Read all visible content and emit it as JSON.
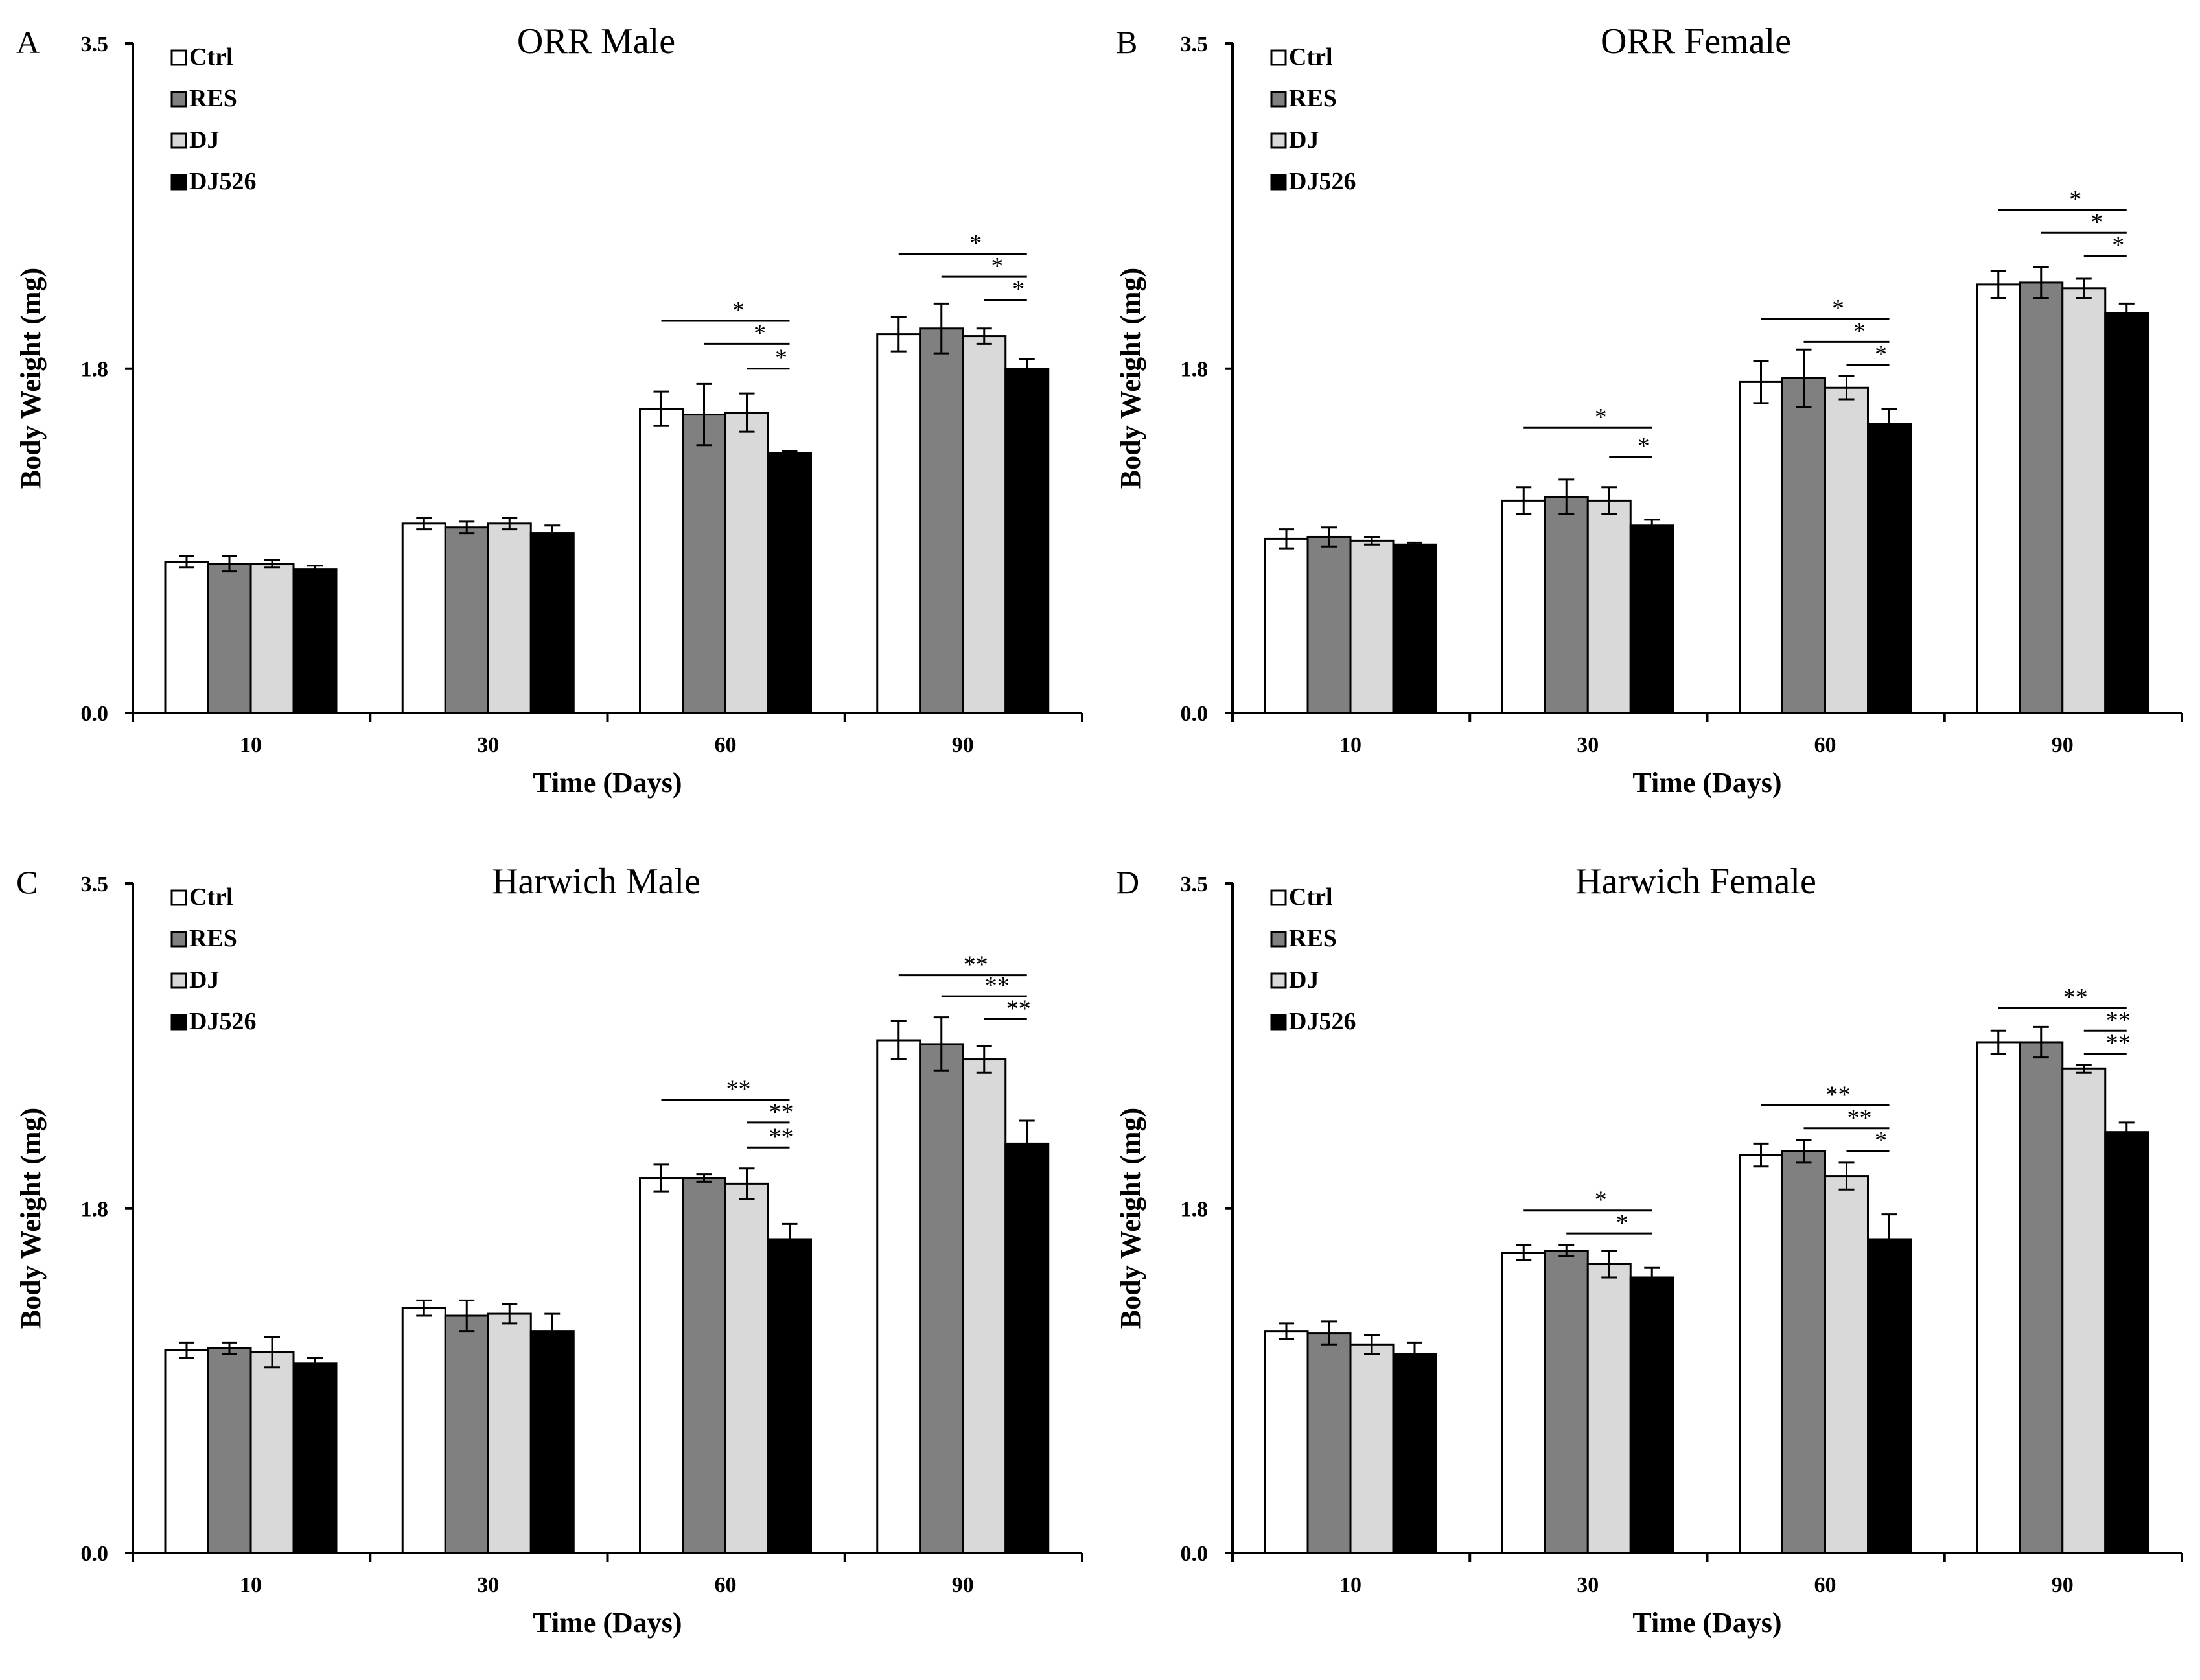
{
  "chart_data": [
    {
      "type": "bar",
      "panel_label": "A",
      "title": "ORR Male",
      "xlabel": "Time (Days)",
      "ylabel": "Body Weight (mg)",
      "ylim": [
        0,
        3.5
      ],
      "yticks": [
        "0.0",
        "1.8",
        "3.5"
      ],
      "categories": [
        "10",
        "30",
        "60",
        "90"
      ],
      "legend": [
        "Ctrl",
        "RES",
        "DJ",
        "DJ526"
      ],
      "colors": [
        "#ffffff",
        "#808080",
        "#d9d9d9",
        "#000000"
      ],
      "series": [
        {
          "name": "Ctrl",
          "values": [
            0.79,
            0.99,
            1.59,
            1.98
          ],
          "errors": [
            0.03,
            0.03,
            0.09,
            0.09
          ]
        },
        {
          "name": "RES",
          "values": [
            0.78,
            0.97,
            1.56,
            2.01
          ],
          "errors": [
            0.04,
            0.03,
            0.16,
            0.13
          ]
        },
        {
          "name": "DJ",
          "values": [
            0.78,
            0.99,
            1.57,
            1.97
          ],
          "errors": [
            0.02,
            0.03,
            0.1,
            0.04
          ]
        },
        {
          "name": "DJ526",
          "values": [
            0.75,
            0.94,
            1.36,
            1.8
          ],
          "errors": [
            0.02,
            0.04,
            0.01,
            0.05
          ]
        }
      ],
      "significance": [
        {
          "category": "60",
          "from": "Ctrl",
          "to": "DJ526",
          "label": "*",
          "y": 2.05
        },
        {
          "category": "60",
          "from": "RES",
          "to": "DJ526",
          "label": "*",
          "y": 1.93
        },
        {
          "category": "60",
          "from": "DJ",
          "to": "DJ526",
          "label": "*",
          "y": 1.8
        },
        {
          "category": "90",
          "from": "Ctrl",
          "to": "DJ526",
          "label": "*",
          "y": 2.4
        },
        {
          "category": "90",
          "from": "RES",
          "to": "DJ526",
          "label": "*",
          "y": 2.28
        },
        {
          "category": "90",
          "from": "DJ",
          "to": "DJ526",
          "label": "*",
          "y": 2.16
        }
      ]
    },
    {
      "type": "bar",
      "panel_label": "B",
      "title": "ORR Female",
      "xlabel": "Time (Days)",
      "ylabel": "Body Weight (mg)",
      "ylim": [
        0,
        3.5
      ],
      "yticks": [
        "0.0",
        "1.8",
        "3.5"
      ],
      "categories": [
        "10",
        "30",
        "60",
        "90"
      ],
      "legend": [
        "Ctrl",
        "RES",
        "DJ",
        "DJ526"
      ],
      "colors": [
        "#ffffff",
        "#808080",
        "#d9d9d9",
        "#000000"
      ],
      "series": [
        {
          "name": "Ctrl",
          "values": [
            0.91,
            1.11,
            1.73,
            2.24
          ],
          "errors": [
            0.05,
            0.07,
            0.11,
            0.07
          ]
        },
        {
          "name": "RES",
          "values": [
            0.92,
            1.13,
            1.75,
            2.25
          ],
          "errors": [
            0.05,
            0.09,
            0.15,
            0.08
          ]
        },
        {
          "name": "DJ",
          "values": [
            0.9,
            1.11,
            1.7,
            2.22
          ],
          "errors": [
            0.02,
            0.07,
            0.06,
            0.05
          ]
        },
        {
          "name": "DJ526",
          "values": [
            0.88,
            0.98,
            1.51,
            2.09
          ],
          "errors": [
            0.01,
            0.03,
            0.08,
            0.05
          ]
        }
      ],
      "significance": [
        {
          "category": "30",
          "from": "Ctrl",
          "to": "DJ526",
          "label": "*",
          "y": 1.49
        },
        {
          "category": "30",
          "from": "DJ",
          "to": "DJ526",
          "label": "*",
          "y": 1.34
        },
        {
          "category": "60",
          "from": "Ctrl",
          "to": "DJ526",
          "label": "*",
          "y": 2.06
        },
        {
          "category": "60",
          "from": "RES",
          "to": "DJ526",
          "label": "*",
          "y": 1.94
        },
        {
          "category": "60",
          "from": "DJ",
          "to": "DJ526",
          "label": "*",
          "y": 1.82
        },
        {
          "category": "90",
          "from": "Ctrl",
          "to": "DJ526",
          "label": "*",
          "y": 2.63
        },
        {
          "category": "90",
          "from": "RES",
          "to": "DJ526",
          "label": "*",
          "y": 2.51
        },
        {
          "category": "90",
          "from": "DJ",
          "to": "DJ526",
          "label": "*",
          "y": 2.39
        }
      ]
    },
    {
      "type": "bar",
      "panel_label": "C",
      "title": "Harwich  Male",
      "xlabel": "Time (Days)",
      "ylabel": "Body Weight (mg)",
      "ylim": [
        0,
        3.5
      ],
      "yticks": [
        "0.0",
        "1.8",
        "3.5"
      ],
      "categories": [
        "10",
        "30",
        "60",
        "90"
      ],
      "legend": [
        "Ctrl",
        "RES",
        "DJ",
        "DJ526"
      ],
      "colors": [
        "#ffffff",
        "#808080",
        "#d9d9d9",
        "#000000"
      ],
      "series": [
        {
          "name": "Ctrl",
          "values": [
            1.06,
            1.28,
            1.96,
            2.68
          ],
          "errors": [
            0.04,
            0.04,
            0.07,
            0.1
          ]
        },
        {
          "name": "RES",
          "values": [
            1.07,
            1.24,
            1.96,
            2.66
          ],
          "errors": [
            0.03,
            0.08,
            0.02,
            0.14
          ]
        },
        {
          "name": "DJ",
          "values": [
            1.05,
            1.25,
            1.93,
            2.58
          ],
          "errors": [
            0.08,
            0.05,
            0.08,
            0.07
          ]
        },
        {
          "name": "DJ526",
          "values": [
            0.99,
            1.16,
            1.64,
            2.14
          ],
          "errors": [
            0.03,
            0.09,
            0.08,
            0.12
          ]
        }
      ],
      "significance": [
        {
          "category": "60",
          "from": "Ctrl",
          "to": "DJ526",
          "label": "**",
          "y": 2.37
        },
        {
          "category": "60",
          "from": "DJ",
          "to": "DJ526",
          "label": "**",
          "y": 2.25
        },
        {
          "category": "60",
          "from": "DJ",
          "to": "DJ526",
          "label": "**",
          "y": 2.12
        },
        {
          "category": "90",
          "from": "Ctrl",
          "to": "DJ526",
          "label": "**",
          "y": 3.02
        },
        {
          "category": "90",
          "from": "RES",
          "to": "DJ526",
          "label": "**",
          "y": 2.91
        },
        {
          "category": "90",
          "from": "DJ",
          "to": "DJ526",
          "label": "**",
          "y": 2.79
        }
      ]
    },
    {
      "type": "bar",
      "panel_label": "D",
      "title": "Harwich  Female",
      "xlabel": "Time (Days)",
      "ylabel": "Body Weight (mg)",
      "ylim": [
        0,
        3.5
      ],
      "yticks": [
        "0.0",
        "1.8",
        "3.5"
      ],
      "categories": [
        "10",
        "30",
        "60",
        "90"
      ],
      "legend": [
        "Ctrl",
        "RES",
        "DJ",
        "DJ526"
      ],
      "colors": [
        "#ffffff",
        "#808080",
        "#d9d9d9",
        "#000000"
      ],
      "series": [
        {
          "name": "Ctrl",
          "values": [
            1.16,
            1.57,
            2.08,
            2.67
          ],
          "errors": [
            0.04,
            0.04,
            0.06,
            0.06
          ]
        },
        {
          "name": "RES",
          "values": [
            1.15,
            1.58,
            2.1,
            2.67
          ],
          "errors": [
            0.06,
            0.03,
            0.06,
            0.08
          ]
        },
        {
          "name": "DJ",
          "values": [
            1.09,
            1.51,
            1.97,
            2.53
          ],
          "errors": [
            0.05,
            0.07,
            0.07,
            0.02
          ]
        },
        {
          "name": "DJ526",
          "values": [
            1.04,
            1.44,
            1.64,
            2.2
          ],
          "errors": [
            0.06,
            0.05,
            0.13,
            0.05
          ]
        }
      ],
      "significance": [
        {
          "category": "30",
          "from": "Ctrl",
          "to": "DJ526",
          "label": "*",
          "y": 1.79
        },
        {
          "category": "30",
          "from": "RES",
          "to": "DJ526",
          "label": "*",
          "y": 1.67
        },
        {
          "category": "60",
          "from": "Ctrl",
          "to": "DJ526",
          "label": "**",
          "y": 2.34
        },
        {
          "category": "60",
          "from": "RES",
          "to": "DJ526",
          "label": "**",
          "y": 2.22
        },
        {
          "category": "60",
          "from": "DJ",
          "to": "DJ526",
          "label": "*",
          "y": 2.1
        },
        {
          "category": "90",
          "from": "Ctrl",
          "to": "DJ526",
          "label": "**",
          "y": 2.85
        },
        {
          "category": "90",
          "from": "DJ",
          "to": "DJ526",
          "label": "**",
          "y": 2.73
        },
        {
          "category": "90",
          "from": "DJ",
          "to": "DJ526",
          "label": "**",
          "y": 2.61
        }
      ]
    }
  ]
}
